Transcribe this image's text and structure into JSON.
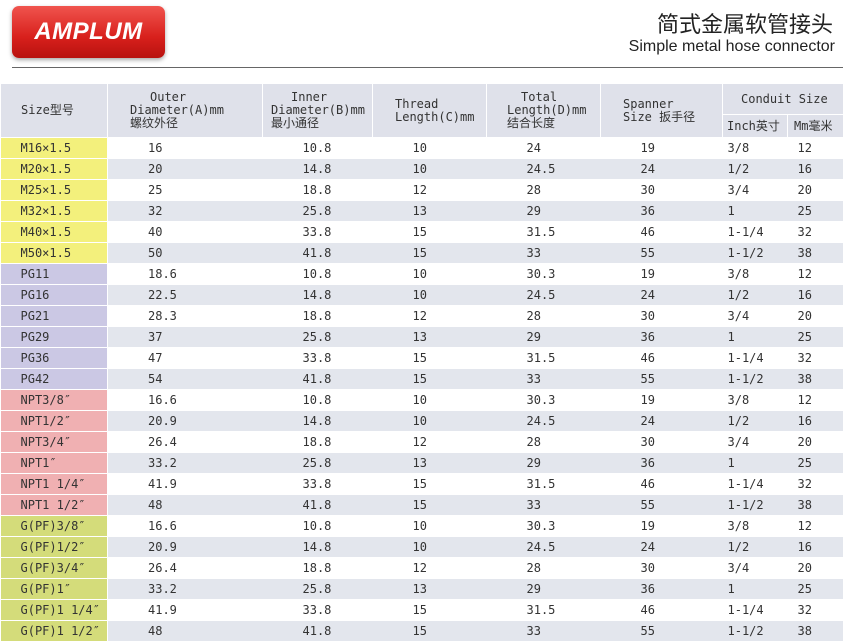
{
  "header": {
    "logo": "AMPLUM",
    "title_cn": "简式金属软管接头",
    "title_en": "Simple metal hose connector"
  },
  "columns": {
    "size": "Size型号",
    "outer": [
      "Outer",
      "Diameter(A)mm",
      "螺纹外径"
    ],
    "inner": [
      "Inner",
      "Diameter(B)mm",
      "最小通径"
    ],
    "thread": [
      "Thread",
      "Length(C)mm"
    ],
    "total": [
      "Total",
      "Length(D)mm",
      "结合长度"
    ],
    "spanner": [
      "Spanner",
      "Size 扳手径"
    ],
    "conduit": "Conduit Size",
    "inch": "Inch英寸",
    "mm": "Mm毫米"
  },
  "group_colors": {
    "M": "#f3f07c",
    "PG": "#cbc8e4",
    "NPT": "#f0b0b2",
    "G": "#d4dc7a"
  },
  "rows": [
    [
      "M",
      "M16×1.5",
      "16",
      "10.8",
      "10",
      "24",
      "19",
      "3/8",
      "12"
    ],
    [
      "M",
      "M20×1.5",
      "20",
      "14.8",
      "10",
      "24.5",
      "24",
      "1/2",
      "16"
    ],
    [
      "M",
      "M25×1.5",
      "25",
      "18.8",
      "12",
      "28",
      "30",
      "3/4",
      "20"
    ],
    [
      "M",
      "M32×1.5",
      "32",
      "25.8",
      "13",
      "29",
      "36",
      "1",
      "25"
    ],
    [
      "M",
      "M40×1.5",
      "40",
      "33.8",
      "15",
      "31.5",
      "46",
      "1-1/4",
      "32"
    ],
    [
      "M",
      "M50×1.5",
      "50",
      "41.8",
      "15",
      "33",
      "55",
      "1-1/2",
      "38"
    ],
    [
      "PG",
      "PG11",
      "18.6",
      "10.8",
      "10",
      "30.3",
      "19",
      "3/8",
      "12"
    ],
    [
      "PG",
      "PG16",
      "22.5",
      "14.8",
      "10",
      "24.5",
      "24",
      "1/2",
      "16"
    ],
    [
      "PG",
      "PG21",
      "28.3",
      "18.8",
      "12",
      "28",
      "30",
      "3/4",
      "20"
    ],
    [
      "PG",
      "PG29",
      "37",
      "25.8",
      "13",
      "29",
      "36",
      "1",
      "25"
    ],
    [
      "PG",
      "PG36",
      "47",
      "33.8",
      "15",
      "31.5",
      "46",
      "1-1/4",
      "32"
    ],
    [
      "PG",
      "PG42",
      "54",
      "41.8",
      "15",
      "33",
      "55",
      "1-1/2",
      "38"
    ],
    [
      "NPT",
      "NPT3/8″",
      "16.6",
      "10.8",
      "10",
      "30.3",
      "19",
      "3/8",
      "12"
    ],
    [
      "NPT",
      "NPT1/2″",
      "20.9",
      "14.8",
      "10",
      "24.5",
      "24",
      "1/2",
      "16"
    ],
    [
      "NPT",
      "NPT3/4″",
      "26.4",
      "18.8",
      "12",
      "28",
      "30",
      "3/4",
      "20"
    ],
    [
      "NPT",
      "NPT1″",
      "33.2",
      "25.8",
      "13",
      "29",
      "36",
      "1",
      "25"
    ],
    [
      "NPT",
      "NPT1 1/4″",
      "41.9",
      "33.8",
      "15",
      "31.5",
      "46",
      "1-1/4",
      "32"
    ],
    [
      "NPT",
      "NPT1 1/2″",
      "48",
      "41.8",
      "15",
      "33",
      "55",
      "1-1/2",
      "38"
    ],
    [
      "G",
      "G(PF)3/8″",
      "16.6",
      "10.8",
      "10",
      "30.3",
      "19",
      "3/8",
      "12"
    ],
    [
      "G",
      "G(PF)1/2″",
      "20.9",
      "14.8",
      "10",
      "24.5",
      "24",
      "1/2",
      "16"
    ],
    [
      "G",
      "G(PF)3/4″",
      "26.4",
      "18.8",
      "12",
      "28",
      "30",
      "3/4",
      "20"
    ],
    [
      "G",
      "G(PF)1″",
      "33.2",
      "25.8",
      "13",
      "29",
      "36",
      "1",
      "25"
    ],
    [
      "G",
      "G(PF)1 1/4″",
      "41.9",
      "33.8",
      "15",
      "31.5",
      "46",
      "1-1/4",
      "32"
    ],
    [
      "G",
      "G(PF)1 1/2″",
      "48",
      "41.8",
      "15",
      "33",
      "55",
      "1-1/2",
      "38"
    ]
  ]
}
